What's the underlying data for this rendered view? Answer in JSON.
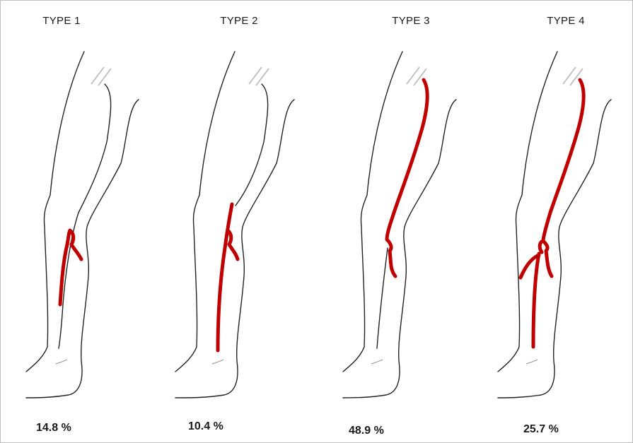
{
  "panels": [
    {
      "type_label": "TYPE 1",
      "percentage": "14.8 %"
    },
    {
      "type_label": "TYPE 2",
      "percentage": "10.4 %"
    },
    {
      "type_label": "TYPE 3",
      "percentage": "48.9 %"
    },
    {
      "type_label": "TYPE 4",
      "percentage": "25.7 %"
    }
  ],
  "colors": {
    "vein": "#c00000",
    "outline": "#222222"
  }
}
